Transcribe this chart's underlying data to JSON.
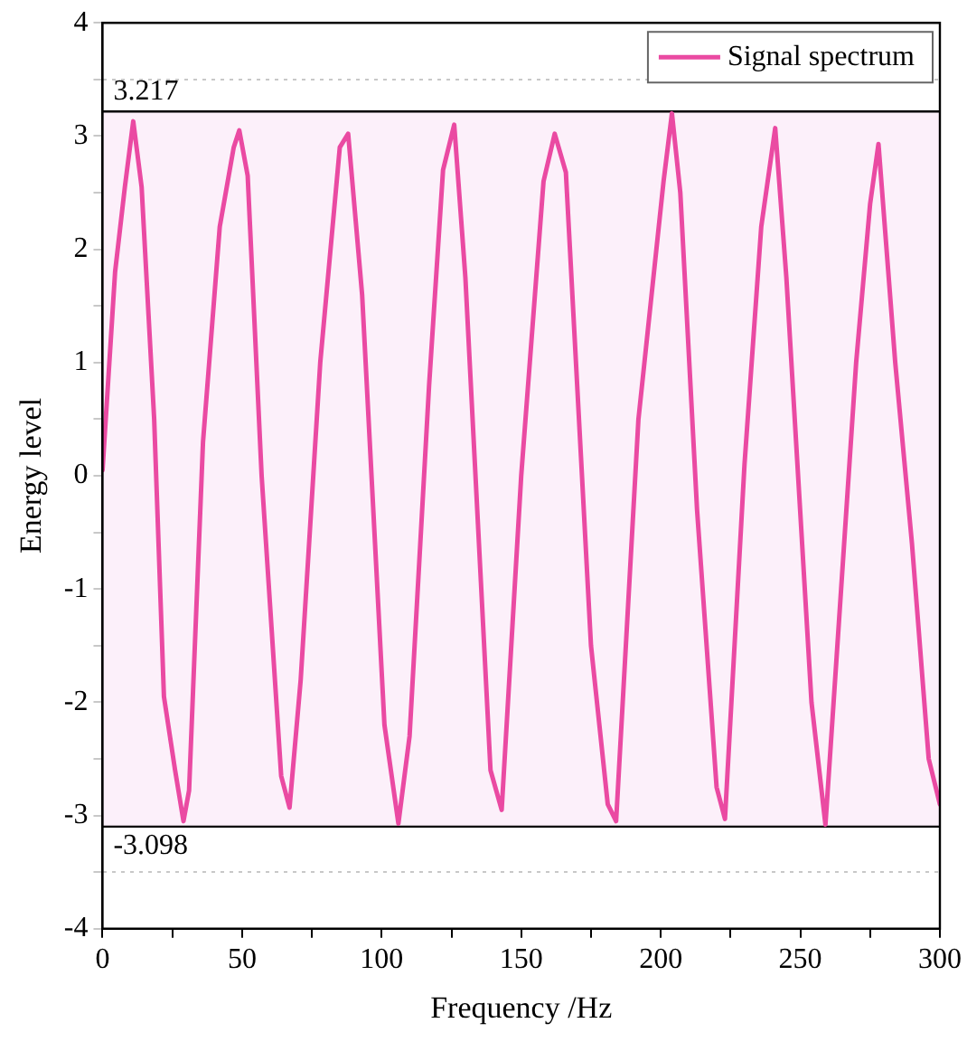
{
  "chart_data": {
    "type": "line",
    "xlabel": "Frequency /Hz",
    "ylabel": "Energy level",
    "xlim": [
      0,
      300
    ],
    "ylim": [
      -4,
      4
    ],
    "xticks": [
      0,
      {
        "value": 25,
        "label": null
      },
      50,
      {
        "value": 75,
        "label": null
      },
      100,
      {
        "value": 125,
        "label": null
      },
      150,
      {
        "value": 175,
        "label": null
      },
      200,
      {
        "value": 225,
        "label": null
      },
      250,
      {
        "value": 275,
        "label": null
      },
      300
    ],
    "yticks": [
      -4,
      {
        "value": -3.5,
        "label": null
      },
      -3,
      {
        "value": -2.5,
        "label": null
      },
      -2,
      {
        "value": -1.5,
        "label": null
      },
      -1,
      {
        "value": -0.5,
        "label": null
      },
      0,
      {
        "value": 0.5,
        "label": null
      },
      1,
      {
        "value": 1.5,
        "label": null
      },
      2,
      {
        "value": 2.5,
        "label": null
      },
      3,
      {
        "value": 3.5,
        "label": null
      },
      4
    ],
    "grid": "y",
    "legend": "top right",
    "marker": "none",
    "line_style": "solid",
    "ref_lines": [
      {
        "axis": "y",
        "value": 3.217,
        "label": "3.217",
        "color": "#000000"
      },
      {
        "axis": "y",
        "value": -3.098,
        "label": "-3.098",
        "color": "#000000"
      }
    ],
    "bands": [
      {
        "axis": "y",
        "from": -3.098,
        "to": 3.217,
        "color": "#fcf0fa"
      }
    ],
    "series": [
      {
        "name": "Signal spectrum",
        "color": "#ea4aa2",
        "x": [
          0,
          4.5,
          8,
          11,
          14,
          18.5,
          22,
          26,
          29,
          31,
          36,
          42,
          47,
          49,
          52,
          57,
          64,
          67,
          71,
          78,
          85,
          88,
          93,
          101,
          106,
          110,
          117,
          122,
          126,
          130,
          139,
          143,
          150,
          158,
          162,
          166,
          175,
          181,
          184,
          192,
          201,
          204,
          207,
          213,
          220,
          223,
          230,
          236,
          241,
          245,
          254,
          259,
          263,
          270,
          275,
          278,
          284,
          290,
          296,
          300
        ],
        "values": [
          0.05,
          1.8,
          2.55,
          3.13,
          2.55,
          0.5,
          -1.95,
          -2.6,
          -3.05,
          -2.78,
          0.3,
          2.2,
          2.9,
          3.05,
          2.65,
          0,
          -2.65,
          -2.93,
          -1.8,
          1.0,
          2.9,
          3.02,
          1.6,
          -2.2,
          -3.07,
          -2.3,
          0.8,
          2.7,
          3.1,
          1.75,
          -2.6,
          -2.95,
          0,
          2.6,
          3.02,
          2.68,
          -1.5,
          -2.9,
          -3.05,
          0.5,
          2.6,
          3.2,
          2.5,
          -0.3,
          -2.75,
          -3.03,
          0.1,
          2.2,
          3.07,
          1.75,
          -2.0,
          -3.08,
          -1.6,
          1.0,
          2.4,
          2.93,
          1.0,
          -0.6,
          -2.5,
          -2.9
        ]
      }
    ]
  }
}
